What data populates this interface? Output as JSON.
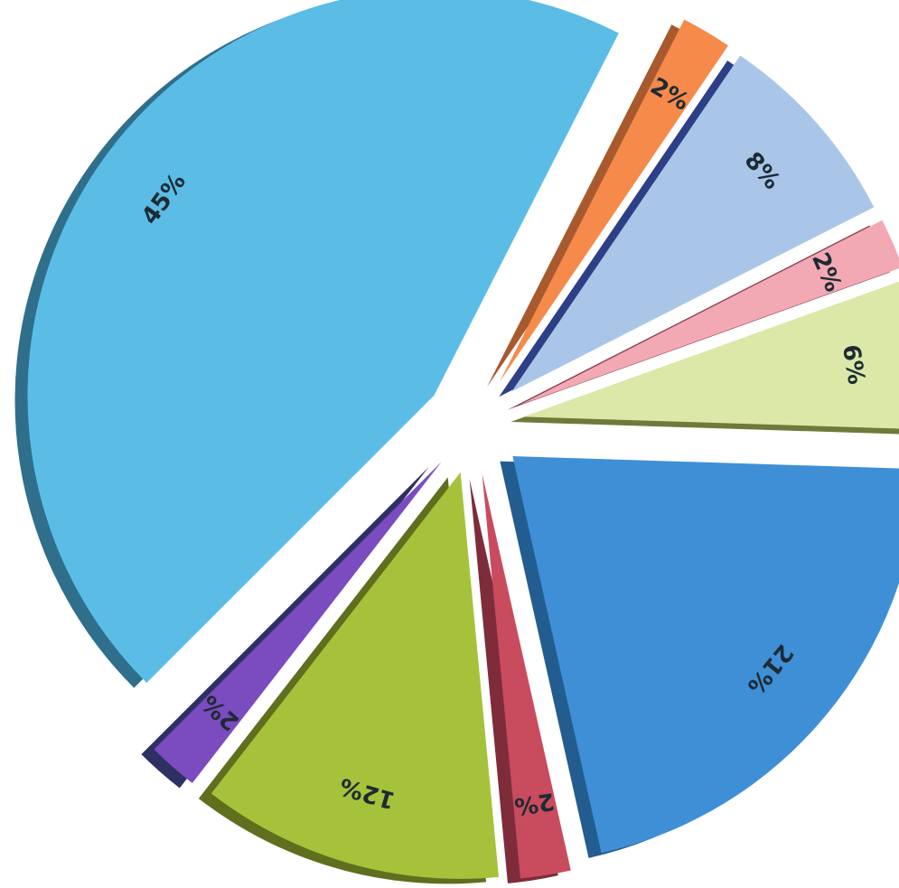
{
  "chart_data": {
    "type": "pie",
    "title": "",
    "exploded": true,
    "three_d": true,
    "labels_rotated_radially": true,
    "slices": [
      {
        "label": "2%",
        "value": 2,
        "color": "#f58a4b",
        "side_color": "#a85a2e"
      },
      {
        "label": "8%",
        "value": 8,
        "color": "#a9c6e8",
        "side_color": "#2d3f86"
      },
      {
        "label": "2%",
        "value": 2,
        "color": "#f2a9b4",
        "side_color": "#8c3f4f"
      },
      {
        "label": "6%",
        "value": 6,
        "color": "#dbe8a8",
        "side_color": "#6f7a3a"
      },
      {
        "label": "21%",
        "value": 21,
        "color": "#3f8fd6",
        "side_color": "#235c8f"
      },
      {
        "label": "2%",
        "value": 2,
        "color": "#c94b5e",
        "side_color": "#7e2c39"
      },
      {
        "label": "12%",
        "value": 12,
        "color": "#a6c23a",
        "side_color": "#5f6f1e"
      },
      {
        "label": "2%",
        "value": 2,
        "color": "#7b4bc0",
        "side_color": "#2e2f63"
      },
      {
        "label": "45%",
        "value": 45,
        "color": "#5bbde6",
        "side_color": "#2f6f8c"
      }
    ]
  }
}
